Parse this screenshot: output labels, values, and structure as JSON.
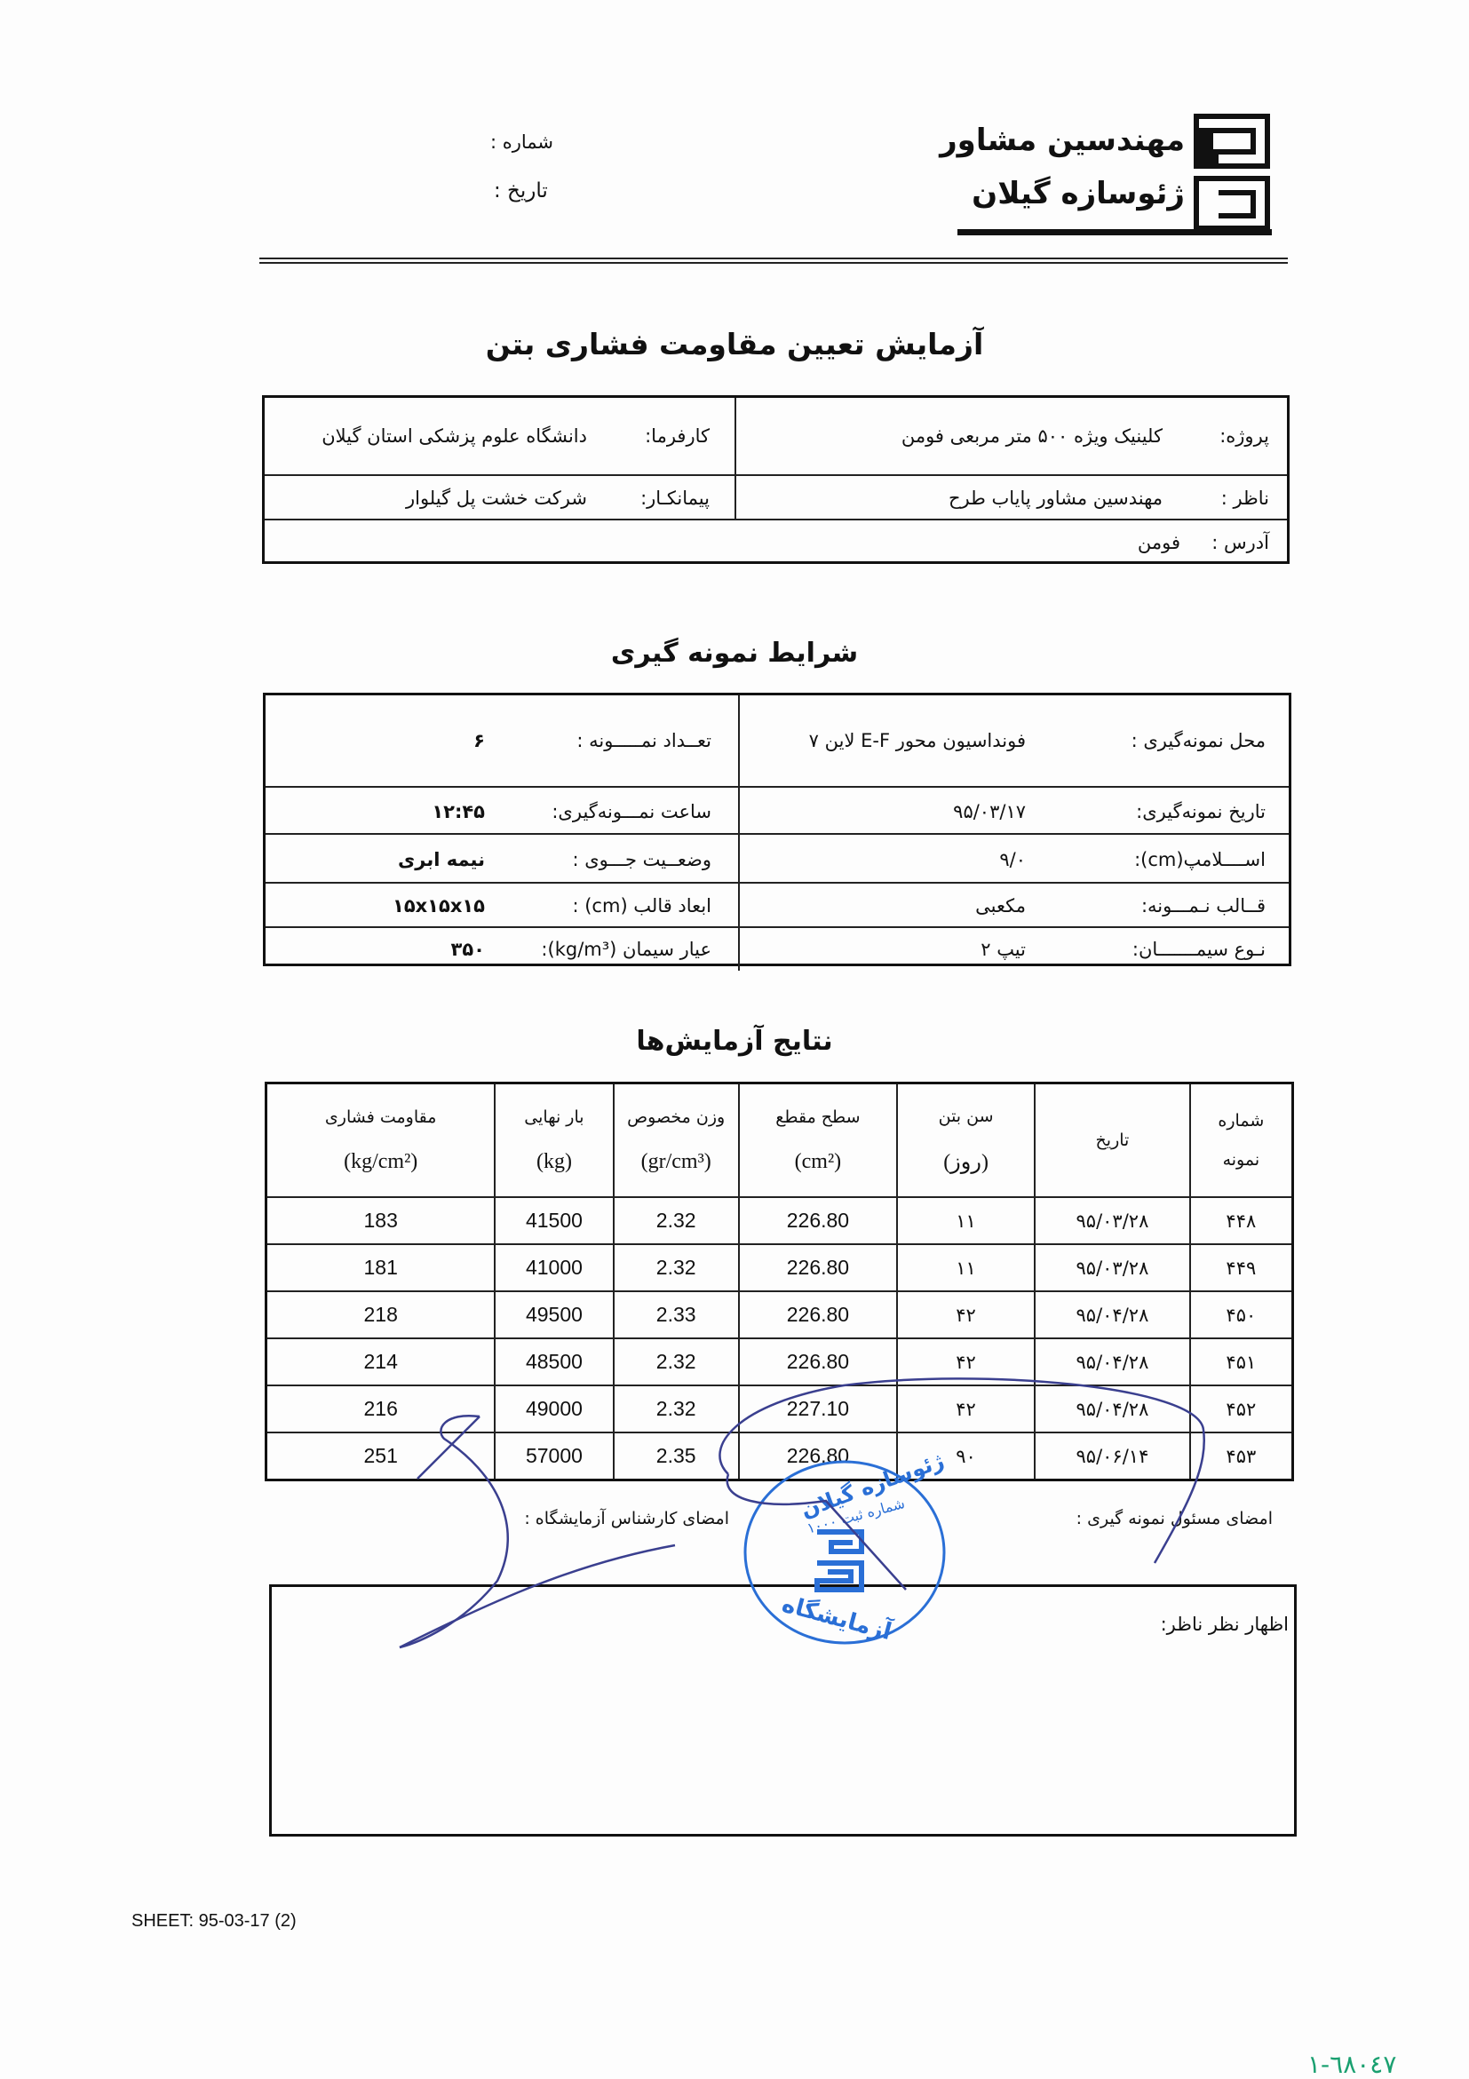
{
  "header": {
    "number_label": "شماره :",
    "date_label": "تاریخ :",
    "company_line1": "مهندسین مشاور",
    "company_line2": "ژئوسازه گیلان"
  },
  "title": "آزمایش تعیین مقاومت فشاری بتن",
  "project_info": {
    "project_label": "پروژه:",
    "project_value": "کلینیک ویژه ۵۰۰ متر مربعی فومن",
    "employer_label": "کارفرما:",
    "employer_value": "دانشگاه علوم پزشکی استان گیلان",
    "supervisor_label": "ناظر :",
    "supervisor_value": "مهندسین مشاور پایاب طرح",
    "contractor_label": "پیمانکـار:",
    "contractor_value": "شرکت خشت پل گیلوار",
    "address_label": "آدرس :",
    "address_value": "فومن"
  },
  "sampling_title": "شرایط نمونه گیری",
  "sampling": [
    {
      "right_label": "محل نمونه‌گیری :",
      "right_value": "فونداسیون محور E-F لاین ۷",
      "left_label": "تعــداد نمـــــونه :",
      "left_value": "۶"
    },
    {
      "right_label": "تاریخ نمونه‌گیری:",
      "right_value": "۹۵/۰۳/۱۷",
      "left_label": "ساعت نمـــونه‌گیری:",
      "left_value": "۱۲:۴۵"
    },
    {
      "right_label": "اســــلامپ(cm):",
      "right_value": "۹/۰",
      "left_label": "وضعــیت جـــوی :",
      "left_value": "نیمه ابری"
    },
    {
      "right_label": "قــالب نـمـــونه:",
      "right_value": "مکعبی",
      "left_label": "ابعاد قالب (cm) :",
      "left_value": "۱۵x۱۵x۱۵"
    },
    {
      "right_label": "نـوع سیمـــــــان:",
      "right_value": "تیپ ۲",
      "left_label": "عیار سیمان (kg/m³):",
      "left_value": "۳۵۰"
    }
  ],
  "results_title": "نتایج آزمایش‌ها",
  "results": {
    "columns": [
      {
        "label": "شماره",
        "unit": "نمونه"
      },
      {
        "label": "تاریخ",
        "unit": ""
      },
      {
        "label": "سن بتن",
        "unit": "(روز)"
      },
      {
        "label": "سطح مقطع",
        "unit": "(cm²)"
      },
      {
        "label": "وزن مخصوص",
        "unit": "(gr/cm³)"
      },
      {
        "label": "بار نهایی",
        "unit": "(kg)"
      },
      {
        "label": "مقاومت فشاری",
        "unit": "(kg/cm²)"
      }
    ],
    "rows": [
      [
        "۴۴۸",
        "۹۵/۰۳/۲۸",
        "۱۱",
        "226.80",
        "2.32",
        "41500",
        "183"
      ],
      [
        "۴۴۹",
        "۹۵/۰۳/۲۸",
        "۱۱",
        "226.80",
        "2.32",
        "41000",
        "181"
      ],
      [
        "۴۵۰",
        "۹۵/۰۴/۲۸",
        "۴۲",
        "226.80",
        "2.33",
        "49500",
        "218"
      ],
      [
        "۴۵۱",
        "۹۵/۰۴/۲۸",
        "۴۲",
        "226.80",
        "2.32",
        "48500",
        "214"
      ],
      [
        "۴۵۲",
        "۹۵/۰۴/۲۸",
        "۴۲",
        "227.10",
        "2.32",
        "49000",
        "216"
      ],
      [
        "۴۵۳",
        "۹۵/۰۶/۱۴",
        "۹۰",
        "226.80",
        "2.35",
        "57000",
        "251"
      ]
    ]
  },
  "signatures": {
    "sampler_label": "امضای مسئول نمونه گیری :",
    "lab_expert_label": "امضای کارشناس آزمایشگاه :"
  },
  "stamp": {
    "text_top": "ژئوسازه گیلان",
    "text_reg": "شماره ثبت ۱۰۰۰",
    "text_bottom": "آزمایشگاه",
    "color": "#2a6fd6"
  },
  "supervisor_comment_label": "اظهار نظر ناظر:",
  "footer": {
    "sheet": "SHEET: 95-03-17 (2)",
    "handwritten_number": "٦٨٠٤٧-١",
    "handwritten_color": "#1aa070"
  },
  "colors": {
    "ink": "#111111",
    "signature": "#3a3f8f"
  }
}
